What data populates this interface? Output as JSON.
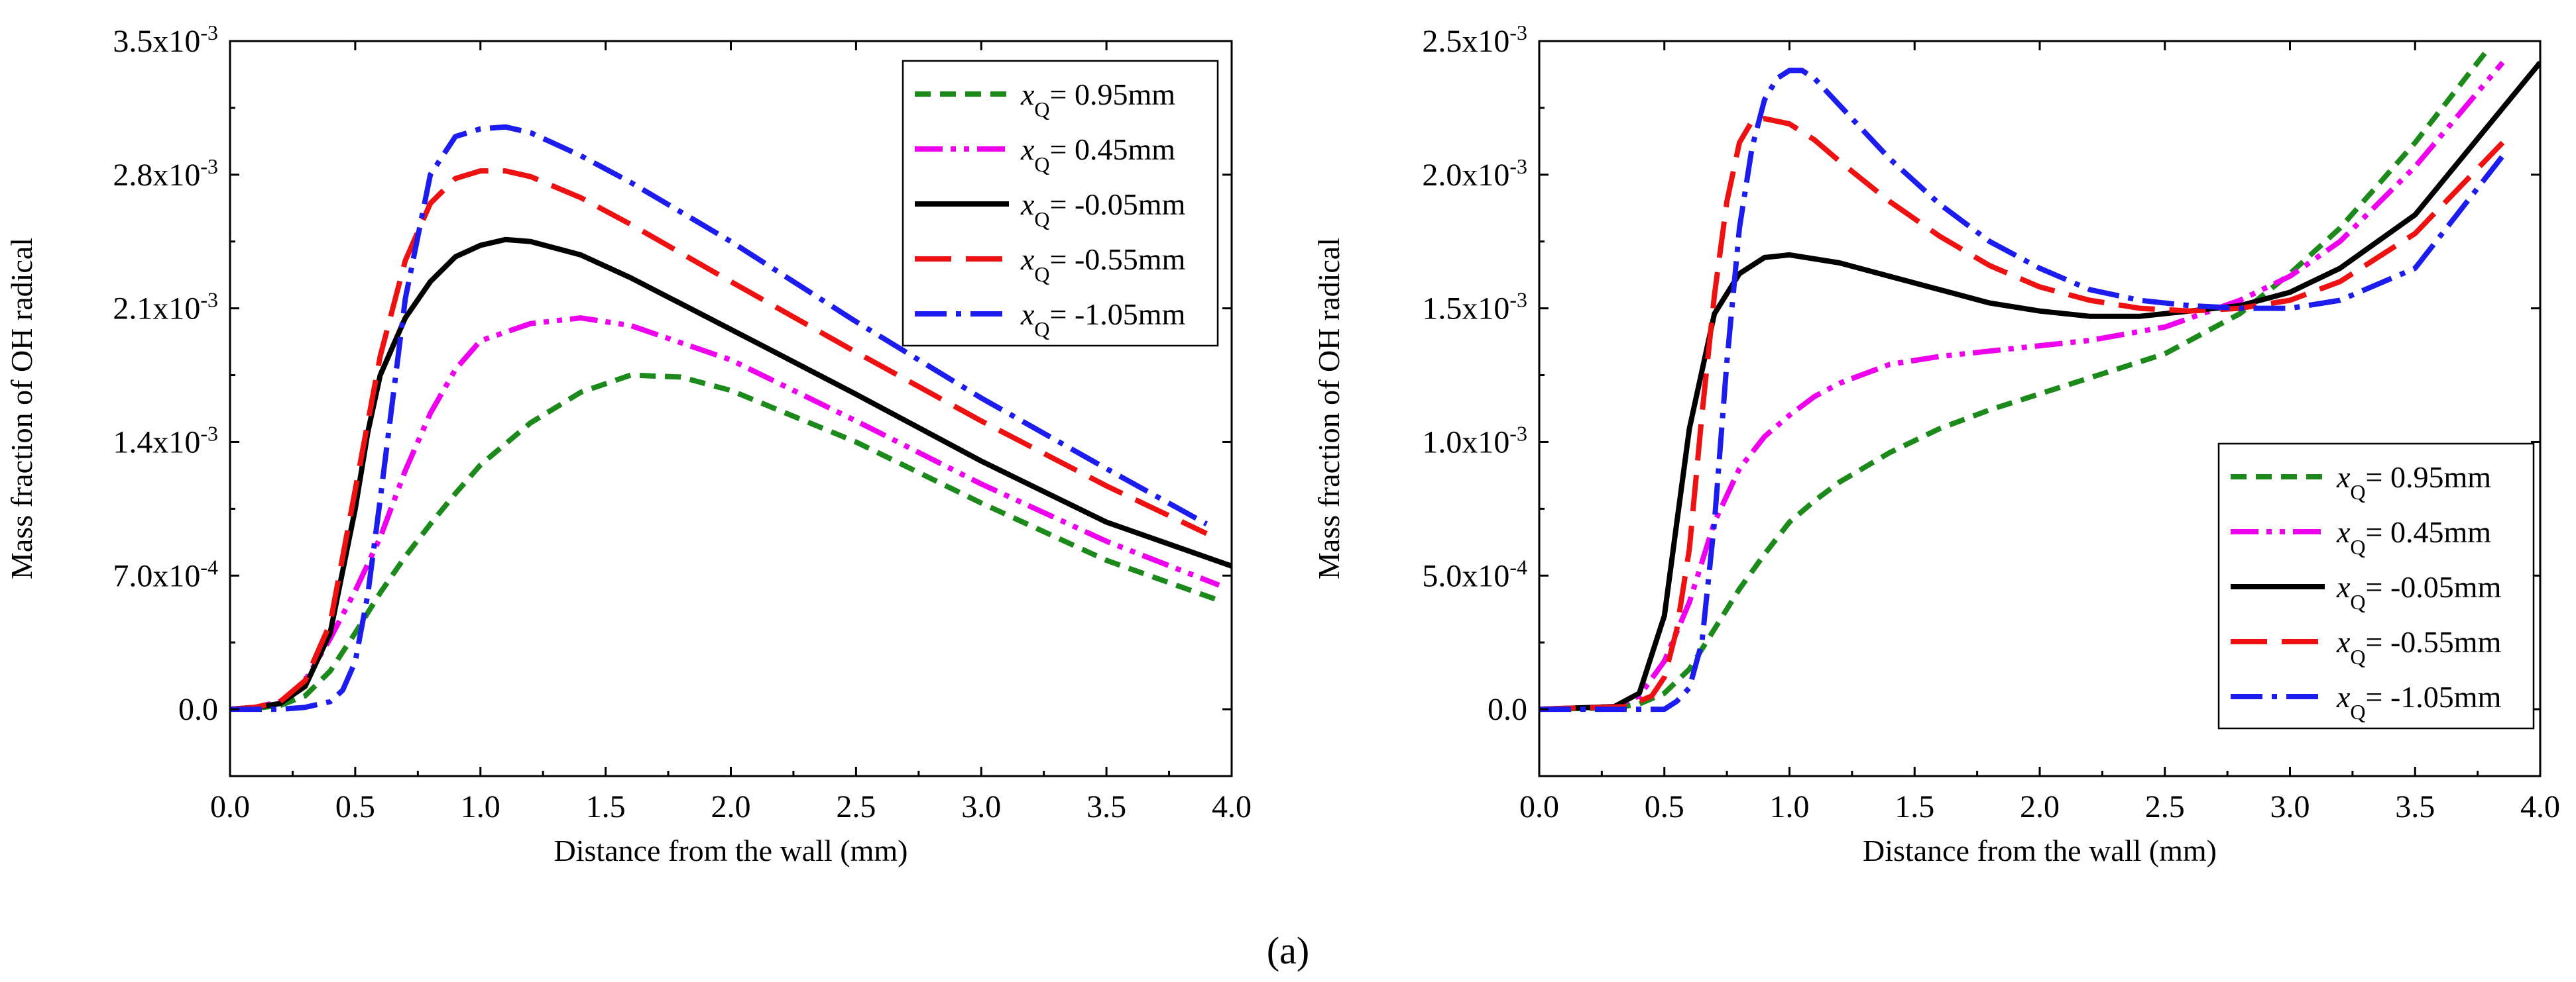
{
  "figure": {
    "caption": "(a)"
  },
  "chart_data": [
    {
      "type": "line",
      "title": "",
      "xlabel": "Distance from the wall (mm)",
      "ylabel": "Mass fraction of OH radical",
      "xlim": [
        0,
        4.0
      ],
      "ylim": [
        -0.00035,
        0.0035
      ],
      "x_ticks": [
        0,
        0.5,
        1.0,
        1.5,
        2.0,
        2.5,
        3.0,
        3.5,
        4.0
      ],
      "x_tick_labels": [
        "0.0",
        "0.5",
        "1.0",
        "1.5",
        "2.0",
        "2.5",
        "3.0",
        "3.5",
        "4.0"
      ],
      "y_ticks": [
        0,
        0.0007,
        0.0014,
        0.0021,
        0.0028,
        0.0035
      ],
      "y_tick_labels": [
        {
          "mantissa": "0.0",
          "exp": ""
        },
        {
          "mantissa": "7.0x10",
          "exp": "-4"
        },
        {
          "mantissa": "1.4x10",
          "exp": "-3"
        },
        {
          "mantissa": "2.1x10",
          "exp": "-3"
        },
        {
          "mantissa": "2.8x10",
          "exp": "-3"
        },
        {
          "mantissa": "3.5x10",
          "exp": "-3"
        }
      ],
      "legend_position": "top-right",
      "series": [
        {
          "var": "x",
          "sub": "Q",
          "label": "= 0.95mm",
          "color": "#1b8a1b",
          "dash": "short-dash",
          "x": [
            0,
            0.1,
            0.2,
            0.3,
            0.4,
            0.5,
            0.6,
            0.7,
            0.8,
            0.9,
            1.0,
            1.2,
            1.4,
            1.6,
            1.8,
            2.0,
            2.5,
            3.0,
            3.5,
            3.95
          ],
          "y": [
            0,
            5e-06,
            2e-05,
            7e-05,
            0.0002,
            0.0004,
            0.00061,
            0.0008,
            0.00097,
            0.00113,
            0.00128,
            0.0015,
            0.00166,
            0.00175,
            0.00174,
            0.00167,
            0.0014,
            0.00108,
            0.00078,
            0.00057
          ]
        },
        {
          "var": "x",
          "sub": "Q",
          "label": "= 0.45mm",
          "color": "#ee00ee",
          "dash": "dash-dot-dot",
          "x": [
            0,
            0.1,
            0.2,
            0.3,
            0.4,
            0.5,
            0.6,
            0.7,
            0.8,
            0.9,
            1.0,
            1.2,
            1.4,
            1.6,
            2.0,
            2.5,
            3.0,
            3.5,
            3.95
          ],
          "y": [
            0,
            1e-05,
            4e-05,
            0.00015,
            0.00037,
            0.00062,
            0.0009,
            0.00125,
            0.00155,
            0.00178,
            0.00193,
            0.00202,
            0.00205,
            0.00201,
            0.00183,
            0.00151,
            0.00118,
            0.00088,
            0.00065
          ]
        },
        {
          "var": "x",
          "sub": "Q",
          "label": "= -0.05mm",
          "color": "#000000",
          "dash": "solid",
          "x": [
            0,
            0.1,
            0.2,
            0.3,
            0.4,
            0.5,
            0.55,
            0.6,
            0.7,
            0.8,
            0.9,
            1.0,
            1.1,
            1.2,
            1.4,
            1.6,
            2.0,
            2.5,
            3.0,
            3.5,
            4.0
          ],
          "y": [
            0,
            1e-05,
            3e-05,
            0.00012,
            0.0004,
            0.00105,
            0.00145,
            0.00175,
            0.00205,
            0.00224,
            0.00237,
            0.00243,
            0.00246,
            0.00245,
            0.00238,
            0.00226,
            0.00199,
            0.00165,
            0.0013,
            0.00098,
            0.00075
          ]
        },
        {
          "var": "x",
          "sub": "Q",
          "label": "= -0.55mm",
          "color": "#ee1111",
          "dash": "long-dash",
          "x": [
            0,
            0.1,
            0.2,
            0.3,
            0.4,
            0.5,
            0.6,
            0.7,
            0.8,
            0.9,
            1.0,
            1.1,
            1.2,
            1.4,
            1.6,
            2.0,
            2.5,
            3.0,
            3.5,
            3.9
          ],
          "y": [
            0,
            1e-05,
            4e-05,
            0.00015,
            0.00045,
            0.00115,
            0.00185,
            0.00235,
            0.00265,
            0.00278,
            0.00282,
            0.00282,
            0.00279,
            0.00268,
            0.00254,
            0.00224,
            0.00187,
            0.00151,
            0.00117,
            0.00092
          ]
        },
        {
          "var": "x",
          "sub": "Q",
          "label": "= -1.05mm",
          "color": "#1c1cee",
          "dash": "dash-dot",
          "x": [
            0,
            0.2,
            0.3,
            0.4,
            0.45,
            0.5,
            0.55,
            0.6,
            0.7,
            0.8,
            0.9,
            1.0,
            1.1,
            1.2,
            1.4,
            1.6,
            2.0,
            2.5,
            3.0,
            3.5,
            3.9
          ],
          "y": [
            0,
            0,
            1e-05,
            4e-05,
            0.0001,
            0.00025,
            0.0006,
            0.0011,
            0.00215,
            0.0028,
            0.003,
            0.00304,
            0.00305,
            0.00302,
            0.0029,
            0.00276,
            0.00245,
            0.00203,
            0.00163,
            0.00126,
            0.00097
          ]
        }
      ]
    },
    {
      "type": "line",
      "title": "",
      "xlabel": "Distance from the wall (mm)",
      "ylabel": "Mass fraction of OH radical",
      "xlim": [
        0,
        4.0
      ],
      "ylim": [
        -0.00025,
        0.0025
      ],
      "x_ticks": [
        0,
        0.5,
        1.0,
        1.5,
        2.0,
        2.5,
        3.0,
        3.5,
        4.0
      ],
      "x_tick_labels": [
        "0.0",
        "0.5",
        "1.0",
        "1.5",
        "2.0",
        "2.5",
        "3.0",
        "3.5",
        "4.0"
      ],
      "y_ticks": [
        0,
        0.0005,
        0.001,
        0.0015,
        0.002,
        0.0025
      ],
      "y_tick_labels": [
        {
          "mantissa": "0.0",
          "exp": ""
        },
        {
          "mantissa": "5.0x10",
          "exp": "-4"
        },
        {
          "mantissa": "1.0x10",
          "exp": "-3"
        },
        {
          "mantissa": "1.5x10",
          "exp": "-3"
        },
        {
          "mantissa": "2.0x10",
          "exp": "-3"
        },
        {
          "mantissa": "2.5x10",
          "exp": "-3"
        }
      ],
      "legend_position": "bottom-right",
      "series": [
        {
          "var": "x",
          "sub": "Q",
          "label": "= 0.95mm",
          "color": "#1b8a1b",
          "dash": "short-dash",
          "x": [
            0,
            0.3,
            0.4,
            0.5,
            0.6,
            0.7,
            0.8,
            0.9,
            1.0,
            1.1,
            1.2,
            1.4,
            1.6,
            1.8,
            2.0,
            2.2,
            2.5,
            2.8,
            3.0,
            3.2,
            3.5,
            3.8
          ],
          "y": [
            0,
            5e-06,
            2e-05,
            6e-05,
            0.00015,
            0.0003,
            0.00045,
            0.00058,
            0.0007,
            0.00078,
            0.00085,
            0.00096,
            0.00105,
            0.00112,
            0.00118,
            0.00124,
            0.00133,
            0.00148,
            0.00163,
            0.0018,
            0.00212,
            0.00248
          ]
        },
        {
          "var": "x",
          "sub": "Q",
          "label": "= 0.45mm",
          "color": "#ee00ee",
          "dash": "dash-dot-dot",
          "x": [
            0,
            0.3,
            0.4,
            0.5,
            0.6,
            0.7,
            0.8,
            0.9,
            1.0,
            1.1,
            1.2,
            1.4,
            1.6,
            1.8,
            2.0,
            2.2,
            2.5,
            2.8,
            3.0,
            3.2,
            3.5,
            3.85
          ],
          "y": [
            0,
            1e-05,
            5e-05,
            0.00018,
            0.0004,
            0.0007,
            0.0009,
            0.00102,
            0.0011,
            0.00117,
            0.00122,
            0.00129,
            0.00132,
            0.00134,
            0.00136,
            0.00138,
            0.00143,
            0.00153,
            0.00162,
            0.00175,
            0.00203,
            0.00242
          ]
        },
        {
          "var": "x",
          "sub": "Q",
          "label": "= -0.05mm",
          "color": "#000000",
          "dash": "solid",
          "x": [
            0,
            0.3,
            0.4,
            0.5,
            0.55,
            0.6,
            0.7,
            0.8,
            0.9,
            1.0,
            1.2,
            1.4,
            1.6,
            1.8,
            2.0,
            2.2,
            2.4,
            2.6,
            2.8,
            3.0,
            3.2,
            3.5,
            4.0
          ],
          "y": [
            0,
            1e-05,
            6e-05,
            0.00035,
            0.0007,
            0.00105,
            0.00148,
            0.00163,
            0.00169,
            0.0017,
            0.00167,
            0.00162,
            0.00157,
            0.00152,
            0.00149,
            0.00147,
            0.00147,
            0.00149,
            0.00151,
            0.00156,
            0.00165,
            0.00185,
            0.00242
          ]
        },
        {
          "var": "x",
          "sub": "Q",
          "label": "= -0.55mm",
          "color": "#ee1111",
          "dash": "long-dash",
          "x": [
            0,
            0.35,
            0.45,
            0.5,
            0.55,
            0.6,
            0.65,
            0.7,
            0.75,
            0.8,
            0.85,
            0.9,
            1.0,
            1.1,
            1.2,
            1.4,
            1.6,
            1.8,
            2.0,
            2.2,
            2.4,
            2.6,
            2.8,
            3.0,
            3.2,
            3.5,
            3.85
          ],
          "y": [
            0,
            1e-05,
            5e-05,
            0.00012,
            0.0003,
            0.0006,
            0.0011,
            0.00155,
            0.0019,
            0.00212,
            0.0022,
            0.00221,
            0.00219,
            0.00213,
            0.00205,
            0.0019,
            0.00177,
            0.00166,
            0.00158,
            0.00153,
            0.0015,
            0.00149,
            0.0015,
            0.00153,
            0.0016,
            0.00178,
            0.00212
          ]
        },
        {
          "var": "x",
          "sub": "Q",
          "label": "= -1.05mm",
          "color": "#1c1cee",
          "dash": "dash-dot",
          "x": [
            0,
            0.5,
            0.55,
            0.6,
            0.65,
            0.7,
            0.75,
            0.8,
            0.85,
            0.9,
            0.95,
            1.0,
            1.05,
            1.1,
            1.2,
            1.4,
            1.6,
            1.8,
            2.0,
            2.2,
            2.4,
            2.6,
            2.8,
            3.0,
            3.2,
            3.5,
            3.85
          ],
          "y": [
            0,
            0,
            3e-05,
            8e-05,
            0.00025,
            0.0007,
            0.0013,
            0.0018,
            0.0021,
            0.00228,
            0.00236,
            0.00239,
            0.00239,
            0.00236,
            0.00226,
            0.00206,
            0.00189,
            0.00175,
            0.00165,
            0.00157,
            0.00153,
            0.00151,
            0.0015,
            0.0015,
            0.00153,
            0.00165,
            0.00207
          ]
        }
      ]
    }
  ]
}
